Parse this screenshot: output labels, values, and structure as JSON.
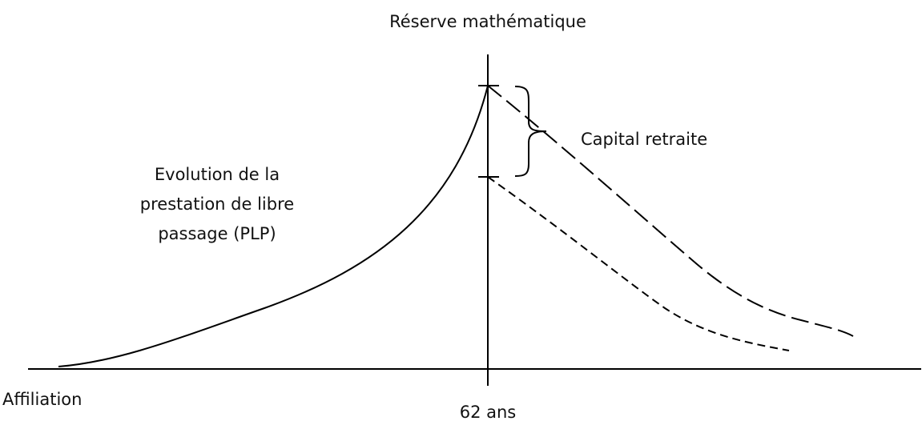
{
  "title": "Réserve mathématique",
  "labels": {
    "capital": "Capital retraite",
    "evolution": [
      "Evolution de la",
      "prestation de libre",
      "passage (PLP)"
    ],
    "start": "Affiliation",
    "age": "62 ans"
  }
}
